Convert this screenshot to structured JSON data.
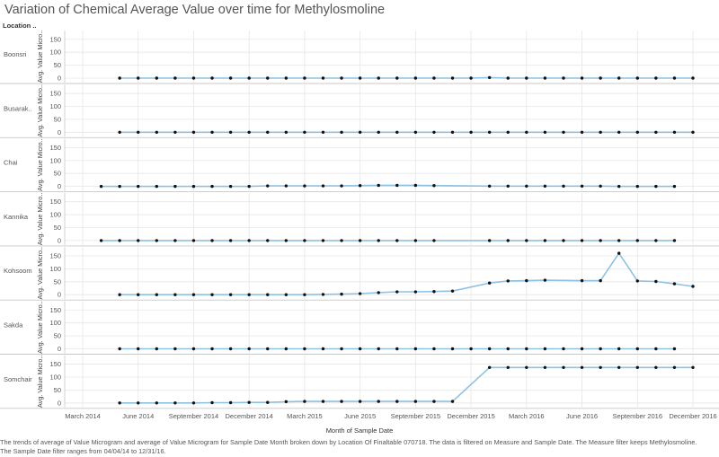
{
  "title": "Variation of Chemical Average Value over time for Methylosmoline",
  "row_header": "Location ..",
  "x_axis_title": "Month of Sample Date",
  "y_axis_title": "Avg. Value Micro..",
  "caption_line1": "The trends of average of Value Microgram and average of Value Microgram for Sample Date Month broken down by Location Of Finaltable 070718. The data is filtered on Measure and Sample Date. The Measure filter keeps Methylosmoline.",
  "caption_line2": "The Sample Date filter ranges from 04/04/14 to 12/31/16.",
  "colors": {
    "line": "#8fc1e3",
    "point": "#111111",
    "grid": "#e6e6e6",
    "divider": "#c8c8c8"
  },
  "chart_data": {
    "type": "line",
    "title": "Variation of Chemical Average Value over time for Methylosmoline",
    "xlabel": "Month of Sample Date",
    "ylabel": "Avg. Value Micro..",
    "ylim": [
      0,
      170
    ],
    "y_ticks": [
      0,
      50,
      100,
      150
    ],
    "x_ticks": [
      "March 2014",
      "June 2014",
      "September 2014",
      "December 2014",
      "March 2015",
      "June 2015",
      "September 2015",
      "December 2015",
      "March 2016",
      "June 2016",
      "September 2016",
      "December 2016"
    ],
    "grid": true,
    "series": [
      {
        "name": "Boonsri",
        "x": [
          "2014-05",
          "2014-06",
          "2014-07",
          "2014-08",
          "2014-09",
          "2014-10",
          "2014-11",
          "2014-12",
          "2015-01",
          "2015-02",
          "2015-03",
          "2015-04",
          "2015-05",
          "2015-06",
          "2015-07",
          "2015-08",
          "2015-09",
          "2015-10",
          "2015-11",
          "2015-12",
          "2016-01",
          "2016-02",
          "2016-03",
          "2016-04",
          "2016-05",
          "2016-06",
          "2016-07",
          "2016-08",
          "2016-09",
          "2016-10",
          "2016-11",
          "2016-12"
        ],
        "values": [
          0,
          0,
          0,
          0,
          0,
          0,
          0,
          0,
          0,
          0,
          0,
          0,
          0,
          0,
          0,
          0,
          0,
          0,
          0,
          0,
          2,
          0,
          0,
          0,
          0,
          0,
          0,
          0,
          0,
          0,
          0,
          0
        ]
      },
      {
        "name": "Busarak..",
        "x": [
          "2014-05",
          "2014-06",
          "2014-07",
          "2014-08",
          "2014-09",
          "2014-10",
          "2014-11",
          "2014-12",
          "2015-01",
          "2015-02",
          "2015-03",
          "2015-04",
          "2015-05",
          "2015-06",
          "2015-07",
          "2015-08",
          "2015-09",
          "2015-10",
          "2015-11",
          "2015-12",
          "2016-01",
          "2016-02",
          "2016-03",
          "2016-04",
          "2016-05",
          "2016-06",
          "2016-07",
          "2016-08",
          "2016-09",
          "2016-10",
          "2016-11",
          "2016-12"
        ],
        "values": [
          0,
          0,
          0,
          0,
          0,
          0,
          0,
          0,
          0,
          0,
          0,
          0,
          0,
          0,
          0,
          0,
          0,
          0,
          0,
          0,
          0,
          0,
          0,
          0,
          0,
          0,
          0,
          0,
          0,
          0,
          0,
          0
        ]
      },
      {
        "name": "Chai",
        "x": [
          "2014-04",
          "2014-05",
          "2014-06",
          "2014-07",
          "2014-08",
          "2014-09",
          "2014-10",
          "2014-11",
          "2014-12",
          "2015-01",
          "2015-02",
          "2015-03",
          "2015-04",
          "2015-05",
          "2015-06",
          "2015-07",
          "2015-08",
          "2015-09",
          "2015-10",
          "2016-01",
          "2016-02",
          "2016-03",
          "2016-04",
          "2016-05",
          "2016-06",
          "2016-07",
          "2016-08",
          "2016-09",
          "2016-10",
          "2016-11"
        ],
        "values": [
          0,
          0,
          0,
          0,
          0,
          0,
          0,
          0,
          0,
          2,
          2,
          2,
          2,
          2,
          3,
          4,
          4,
          4,
          3,
          1,
          1,
          1,
          1,
          1,
          1,
          1,
          0,
          0,
          0,
          0
        ]
      },
      {
        "name": "Kannika",
        "x": [
          "2014-04",
          "2014-05",
          "2014-06",
          "2014-07",
          "2014-08",
          "2014-09",
          "2014-10",
          "2014-11",
          "2014-12",
          "2015-01",
          "2015-02",
          "2015-03",
          "2015-04",
          "2015-05",
          "2015-06",
          "2015-07",
          "2015-08",
          "2015-09",
          "2015-10",
          "2016-01",
          "2016-02",
          "2016-03",
          "2016-04",
          "2016-05",
          "2016-06",
          "2016-07",
          "2016-08",
          "2016-09",
          "2016-10",
          "2016-11"
        ],
        "values": [
          0,
          0,
          0,
          0,
          0,
          0,
          0,
          0,
          0,
          0,
          0,
          0,
          0,
          0,
          0,
          0,
          0,
          0,
          0,
          0,
          0,
          0,
          0,
          0,
          0,
          0,
          0,
          0,
          0,
          0
        ]
      },
      {
        "name": "Kohsoom",
        "x": [
          "2014-05",
          "2014-06",
          "2014-07",
          "2014-08",
          "2014-09",
          "2014-10",
          "2014-11",
          "2014-12",
          "2015-01",
          "2015-02",
          "2015-03",
          "2015-04",
          "2015-05",
          "2015-06",
          "2015-07",
          "2015-08",
          "2015-09",
          "2015-10",
          "2015-11",
          "2016-01",
          "2016-02",
          "2016-03",
          "2016-04",
          "2016-06",
          "2016-07",
          "2016-08",
          "2016-09",
          "2016-10",
          "2016-11",
          "2016-12"
        ],
        "values": [
          0,
          0,
          0,
          0,
          0,
          0,
          0,
          0,
          0,
          0,
          0,
          1,
          2,
          4,
          8,
          11,
          11,
          12,
          14,
          45,
          53,
          54,
          56,
          54,
          54,
          160,
          53,
          51,
          42,
          32
        ]
      },
      {
        "name": "Sakda",
        "x": [
          "2014-05",
          "2014-06",
          "2014-07",
          "2014-08",
          "2014-09",
          "2014-10",
          "2014-11",
          "2014-12",
          "2015-01",
          "2015-02",
          "2015-03",
          "2015-04",
          "2015-05",
          "2015-06",
          "2015-07",
          "2015-08",
          "2015-09",
          "2015-10",
          "2015-11",
          "2015-12",
          "2016-01",
          "2016-02",
          "2016-03",
          "2016-04",
          "2016-05",
          "2016-06",
          "2016-07",
          "2016-08",
          "2016-09",
          "2016-10",
          "2016-11"
        ],
        "values": [
          0,
          0,
          0,
          0,
          0,
          0,
          0,
          0,
          0,
          0,
          0,
          0,
          0,
          0,
          0,
          0,
          0,
          0,
          0,
          0,
          0,
          0,
          0,
          0,
          0,
          0,
          0,
          0,
          0,
          0,
          0
        ]
      },
      {
        "name": "Somchair",
        "x": [
          "2014-05",
          "2014-06",
          "2014-07",
          "2014-08",
          "2014-09",
          "2014-10",
          "2014-11",
          "2014-12",
          "2015-01",
          "2015-02",
          "2015-03",
          "2015-04",
          "2015-05",
          "2015-06",
          "2015-07",
          "2015-08",
          "2015-09",
          "2015-10",
          "2015-11",
          "2016-01",
          "2016-02",
          "2016-03",
          "2016-04",
          "2016-05",
          "2016-06",
          "2016-07",
          "2016-08",
          "2016-09",
          "2016-10",
          "2016-11",
          "2016-12"
        ],
        "values": [
          0,
          0,
          0,
          0,
          0,
          1,
          1,
          2,
          2,
          5,
          6,
          6,
          6,
          6,
          6,
          6,
          6,
          6,
          6,
          137,
          137,
          137,
          137,
          137,
          137,
          137,
          137,
          137,
          137,
          137,
          137
        ]
      }
    ]
  }
}
